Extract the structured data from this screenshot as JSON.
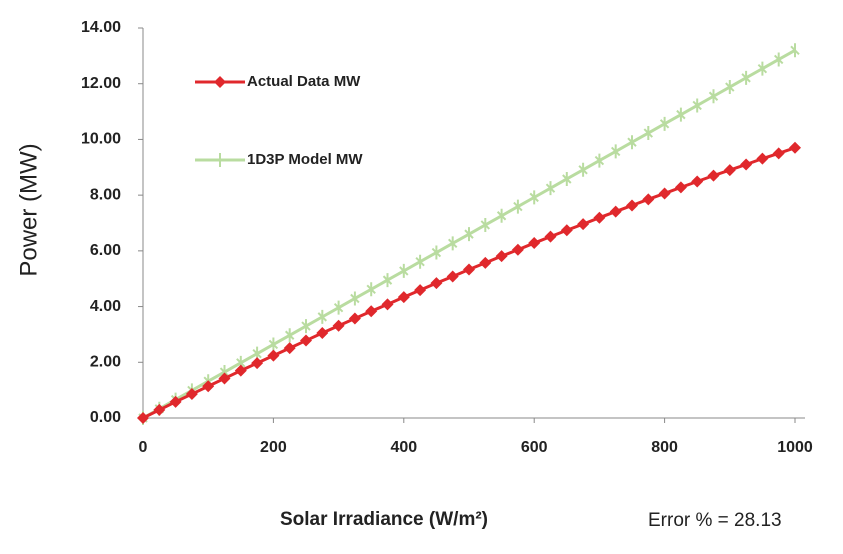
{
  "chart_data": {
    "type": "line",
    "y_label": "Power (MW)",
    "x_label": "Solar Irradiance (W/m²)",
    "annotation": "Error % = 28.13",
    "x": [
      0,
      25,
      50,
      75,
      100,
      125,
      150,
      175,
      200,
      225,
      250,
      275,
      300,
      325,
      350,
      375,
      400,
      425,
      450,
      475,
      500,
      525,
      550,
      575,
      600,
      625,
      650,
      675,
      700,
      725,
      750,
      775,
      800,
      825,
      850,
      875,
      900,
      925,
      950,
      975,
      1000
    ],
    "series": [
      {
        "name": "Actual Data MW",
        "color": "#e0282c",
        "marker": "diamond",
        "values": [
          0,
          0.29,
          0.58,
          0.86,
          1.14,
          1.42,
          1.7,
          1.97,
          2.24,
          2.51,
          2.78,
          3.05,
          3.31,
          3.57,
          3.83,
          4.08,
          4.34,
          4.59,
          4.84,
          5.08,
          5.33,
          5.57,
          5.81,
          6.04,
          6.28,
          6.51,
          6.74,
          6.96,
          7.19,
          7.41,
          7.63,
          7.85,
          8.06,
          8.28,
          8.49,
          8.7,
          8.9,
          9.1,
          9.31,
          9.5,
          9.7
        ]
      },
      {
        "name": "1D3P Model MW",
        "color": "#b9dca0",
        "marker": "cross",
        "values": [
          0,
          0.33,
          0.66,
          0.99,
          1.32,
          1.65,
          1.98,
          2.31,
          2.64,
          2.97,
          3.3,
          3.63,
          3.96,
          4.29,
          4.62,
          4.95,
          5.28,
          5.61,
          5.94,
          6.27,
          6.6,
          6.93,
          7.26,
          7.59,
          7.92,
          8.25,
          8.58,
          8.91,
          9.24,
          9.57,
          9.9,
          10.23,
          10.56,
          10.89,
          11.22,
          11.55,
          11.88,
          12.21,
          12.54,
          12.87,
          13.2
        ]
      }
    ],
    "xlim": [
      0,
      1000
    ],
    "xticks": [
      0,
      200,
      400,
      600,
      800,
      1000
    ],
    "ylim": [
      0,
      14
    ],
    "yticks": [
      {
        "value": 0,
        "label": "0.00"
      },
      {
        "value": 2,
        "label": "2.00"
      },
      {
        "value": 4,
        "label": "4.00"
      },
      {
        "value": 6,
        "label": "6.00"
      },
      {
        "value": 8,
        "label": "8.00"
      },
      {
        "value": 10,
        "label": "10.00"
      },
      {
        "value": 12,
        "label": "12.00"
      },
      {
        "value": 14,
        "label": "14.00"
      }
    ],
    "grid": false,
    "legend": "top-left"
  }
}
